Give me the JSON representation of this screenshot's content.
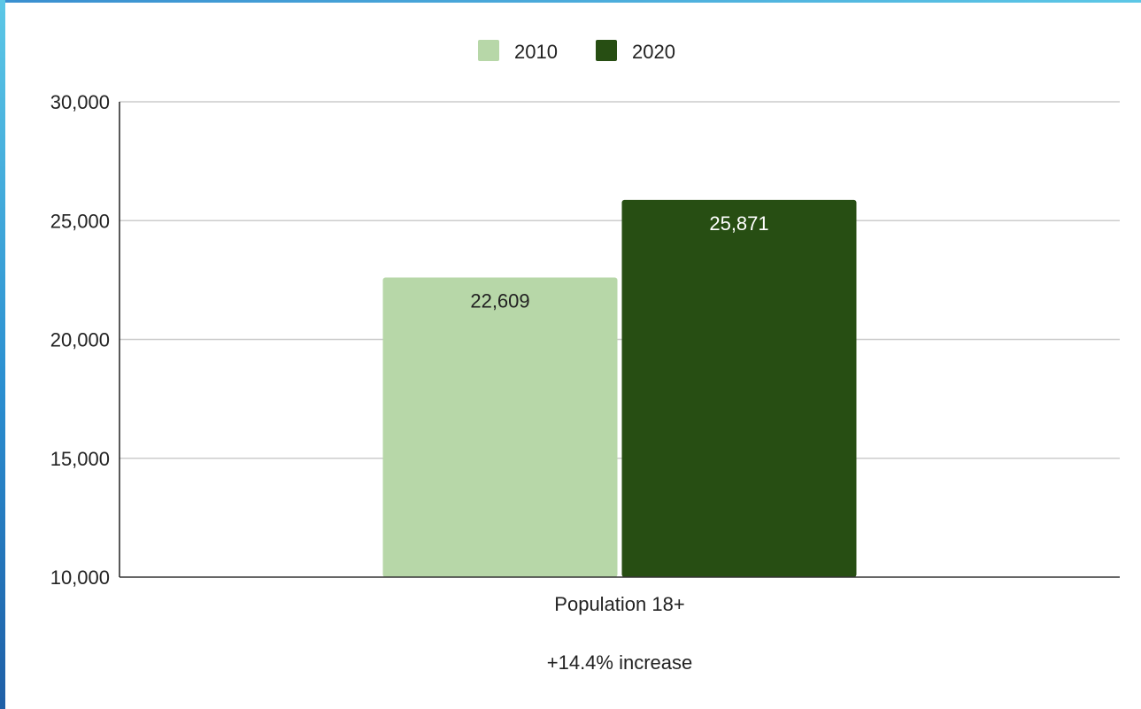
{
  "chart_data": {
    "type": "bar",
    "categories": [
      "Population 18+"
    ],
    "series": [
      {
        "name": "2010",
        "values": [
          22609
        ],
        "labels": [
          "22,609"
        ],
        "color": "#b7d7a8",
        "label_color": "#222222"
      },
      {
        "name": "2020",
        "values": [
          25871
        ],
        "labels": [
          "25,871"
        ],
        "color": "#274e13",
        "label_color": "#ffffff"
      }
    ],
    "y_ticks": [
      10000,
      15000,
      20000,
      25000,
      30000
    ],
    "y_tick_labels": [
      "10,000",
      "15,000",
      "20,000",
      "25,000",
      "30,000"
    ],
    "ylim": [
      10000,
      30000
    ],
    "grid": true,
    "legend_position": "top",
    "annotation": "+14.4% increase"
  }
}
